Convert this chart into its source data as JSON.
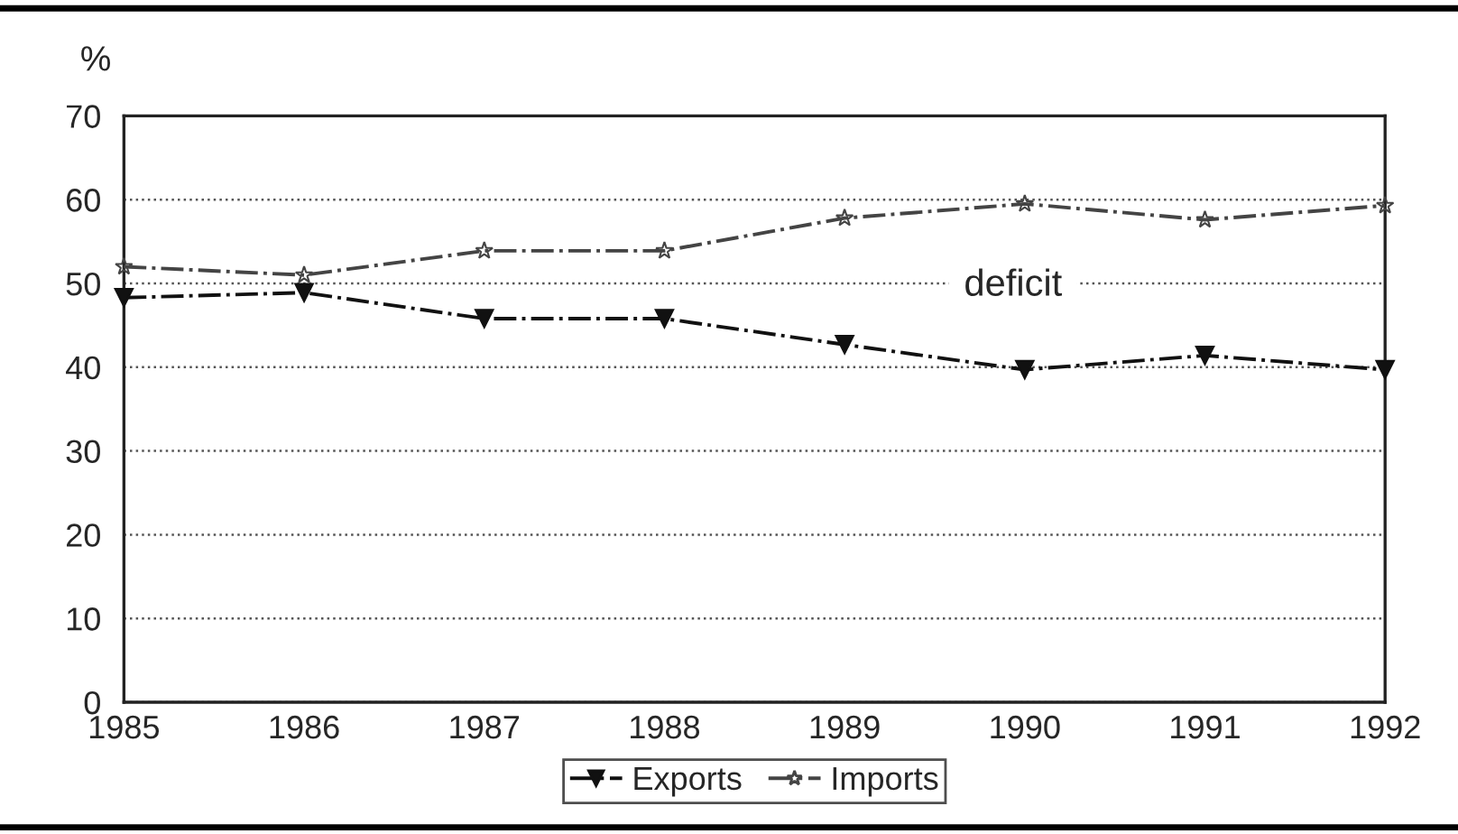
{
  "chart_data": {
    "type": "line",
    "ylabel": "%",
    "x": [
      1985,
      1986,
      1987,
      1988,
      1989,
      1990,
      1991,
      1992
    ],
    "series": [
      {
        "name": "Exports",
        "color": "#111111",
        "marker": "triangle",
        "values": [
          48.3,
          48.9,
          45.8,
          45.8,
          42.7,
          39.7,
          41.4,
          39.7
        ]
      },
      {
        "name": "Imports",
        "color": "#444444",
        "marker": "star",
        "values": [
          52.0,
          51.0,
          53.9,
          53.9,
          57.8,
          59.5,
          57.6,
          59.3
        ]
      }
    ],
    "xlim": [
      1985,
      1992
    ],
    "xticks": [
      1985,
      1986,
      1987,
      1988,
      1989,
      1990,
      1991,
      1992
    ],
    "ylim": [
      0,
      70
    ],
    "yticks": [
      0,
      10,
      20,
      30,
      40,
      50,
      60,
      70
    ],
    "grid": "y",
    "legend": "bottom",
    "line_style": "dashed",
    "annotations": [
      "deficit"
    ]
  }
}
